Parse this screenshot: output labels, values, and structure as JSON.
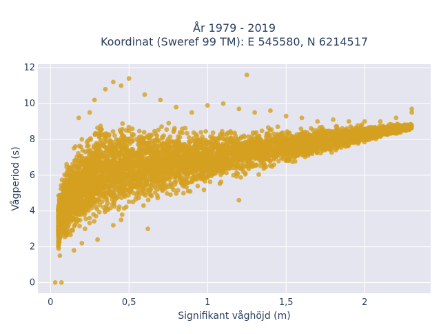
{
  "title": {
    "line1": "År 1979 - 2019",
    "line2": "Koordinat (Sweref 99 TM): E 545580, N 6214517"
  },
  "colors": {
    "plot_bg": "#e5e5f0",
    "grid": "#ffffff",
    "marker": "#d4a020",
    "text": "#2a3f5f"
  },
  "chart_data": {
    "type": "scatter",
    "title": "År 1979 - 2019 / Koordinat (Sweref 99 TM): E 545580, N 6214517",
    "xlabel": "Signifikant våghöjd (m)",
    "ylabel": "Vågperiod (s)",
    "xlim": [
      -0.08,
      2.42
    ],
    "ylim": [
      -0.6,
      12.2
    ],
    "x_ticks": [
      0,
      0.5,
      1,
      1.5,
      2
    ],
    "x_tick_labels": [
      "0",
      "0,5",
      "1",
      "1,5",
      "2"
    ],
    "y_ticks": [
      0,
      2,
      4,
      6,
      8,
      10,
      12
    ],
    "y_tick_labels": [
      "0",
      "2",
      "4",
      "6",
      "8",
      "10",
      "12"
    ],
    "grid": true,
    "legend": "none",
    "series": [
      {
        "points_note": "dense cloud of hourly observations; representative points listed",
        "x": [
          0.03,
          0.07,
          0.05,
          0.06,
          0.08,
          0.1,
          0.12,
          0.15,
          0.18,
          0.2,
          0.22,
          0.25,
          0.28,
          0.3,
          0.35,
          0.4,
          0.45,
          0.5,
          0.6,
          0.7,
          0.8,
          0.9,
          1.0,
          1.1,
          1.2,
          1.3,
          1.4,
          1.5,
          1.6,
          1.7,
          1.8,
          1.9,
          2.0,
          2.1,
          2.2,
          2.3,
          0.4,
          0.45,
          0.62,
          1.2,
          1.25,
          0.2,
          0.15,
          2.25,
          2.3
        ],
        "y": [
          0.0,
          0.0,
          2.0,
          1.5,
          2.8,
          4.0,
          5.0,
          7.5,
          9.2,
          8.0,
          3.0,
          9.5,
          10.2,
          2.4,
          10.8,
          11.2,
          11.0,
          11.4,
          10.5,
          10.2,
          9.8,
          9.5,
          9.9,
          10.0,
          9.7,
          9.5,
          9.6,
          9.3,
          9.2,
          9.0,
          9.1,
          9.0,
          9.0,
          9.0,
          9.2,
          9.7,
          3.2,
          3.5,
          3.0,
          4.6,
          11.6,
          2.2,
          1.8,
          8.7,
          9.5
        ]
      }
    ]
  }
}
